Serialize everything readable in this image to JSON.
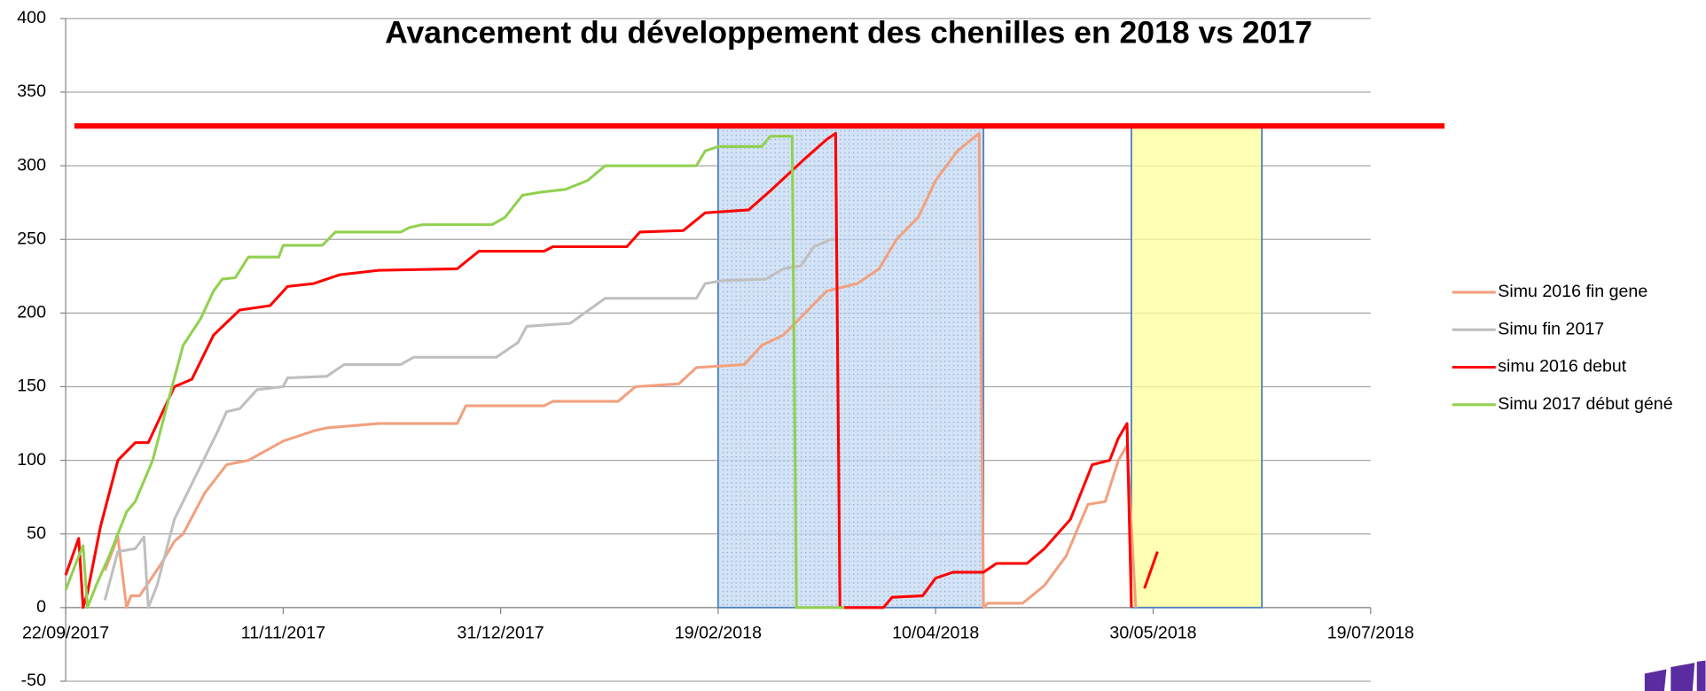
{
  "chart_data": {
    "type": "line",
    "title": "Avancement du développement des chenilles en 2018 vs 2017",
    "xlim": [
      "2017-09-22",
      "2018-07-19"
    ],
    "xticks": [
      {
        "value": "2017-09-22",
        "label": "22/09/2017"
      },
      {
        "value": "2017-11-11",
        "label": "11/11/2017"
      },
      {
        "value": "2017-12-31",
        "label": "31/12/2017"
      },
      {
        "value": "2018-02-19",
        "label": "19/02/2018"
      },
      {
        "value": "2018-04-10",
        "label": "10/04/2018"
      },
      {
        "value": "2018-05-30",
        "label": "30/05/2018"
      },
      {
        "value": "2018-07-19",
        "label": "19/07/2018"
      }
    ],
    "ylim": [
      -50,
      400
    ],
    "yticks": [
      -50,
      0,
      50,
      100,
      150,
      200,
      250,
      300,
      350,
      400
    ],
    "grid": true,
    "legend": "right",
    "reference_line": {
      "value": 327,
      "x": [
        "2017-09-24",
        "2018-08-05"
      ],
      "color": "#ff0000"
    },
    "shaded_regions": [
      {
        "x": [
          "2018-02-19",
          "2018-04-21"
        ],
        "y": [
          0,
          327
        ],
        "color": "#c5d9f1",
        "border": "#4f81bd"
      },
      {
        "x": [
          "2018-05-25",
          "2018-06-24"
        ],
        "y": [
          0,
          327
        ],
        "color": "#ffff99",
        "border": "#4f81bd"
      }
    ],
    "series": [
      {
        "name": "Simu 2016 fin gene",
        "color": "#f2a07e",
        "x": [
          "2017-10-01",
          "2017-10-04",
          "2017-10-06",
          "2017-10-07",
          "2017-10-09",
          "2017-10-14",
          "2017-10-17",
          "2017-10-19",
          "2017-10-24",
          "2017-10-29",
          "2017-11-03",
          "2017-11-11",
          "2017-11-18",
          "2017-11-21",
          "2017-12-03",
          "2017-12-21",
          "2017-12-23",
          "2018-01-10",
          "2018-01-12",
          "2018-01-27",
          "2018-01-31",
          "2018-02-10",
          "2018-02-14",
          "2018-02-25",
          "2018-03-01",
          "2018-03-06",
          "2018-03-11",
          "2018-03-16",
          "2018-03-23",
          "2018-03-28",
          "2018-04-01",
          "2018-04-06",
          "2018-04-10",
          "2018-04-15",
          "2018-04-20",
          "2018-04-21",
          "2018-04-22",
          "2018-04-30",
          "2018-05-05",
          "2018-05-10",
          "2018-05-15",
          "2018-05-19",
          "2018-05-22",
          "2018-05-24",
          "2018-05-26"
        ],
        "values": [
          25,
          48,
          0,
          8,
          8,
          30,
          45,
          50,
          78,
          97,
          100,
          113,
          120,
          122,
          125,
          125,
          137,
          137,
          140,
          140,
          150,
          152,
          163,
          165,
          178,
          185,
          200,
          215,
          220,
          230,
          250,
          265,
          290,
          310,
          322,
          0,
          3,
          3,
          15,
          35,
          70,
          72,
          100,
          110,
          0
        ]
      },
      {
        "name": "Simu fin 2017",
        "color": "#bfbfbf",
        "x": [
          "2017-10-01",
          "2017-10-04",
          "2017-10-08",
          "2017-10-10",
          "2017-10-11",
          "2017-10-13",
          "2017-10-17",
          "2017-10-22",
          "2017-10-27",
          "2017-10-29",
          "2017-11-01",
          "2017-11-05",
          "2017-11-11",
          "2017-11-12",
          "2017-11-21",
          "2017-11-25",
          "2017-12-08",
          "2017-12-11",
          "2017-12-30",
          "2018-01-04",
          "2018-01-06",
          "2018-01-16",
          "2018-01-24",
          "2018-02-14",
          "2018-02-16",
          "2018-02-20",
          "2018-03-02",
          "2018-03-06",
          "2018-03-10",
          "2018-03-13",
          "2018-03-17",
          "2018-03-18"
        ],
        "values": [
          5,
          38,
          40,
          48,
          0,
          15,
          60,
          90,
          120,
          133,
          135,
          148,
          150,
          156,
          157,
          165,
          165,
          170,
          170,
          180,
          191,
          193,
          210,
          210,
          220,
          222,
          223,
          230,
          232,
          245,
          250,
          250
        ]
      },
      {
        "name": "simu 2016 debut",
        "color": "#ff0000",
        "x": [
          "2017-09-22",
          "2017-09-25",
          "2017-09-26",
          "2017-09-27",
          "2017-09-30",
          "2017-10-04",
          "2017-10-08",
          "2017-10-11",
          "2017-10-17",
          "2017-10-21",
          "2017-10-26",
          "2017-11-01",
          "2017-11-08",
          "2017-11-12",
          "2017-11-18",
          "2017-11-24",
          "2017-12-03",
          "2017-12-21",
          "2017-12-26",
          "2018-01-10",
          "2018-01-12",
          "2018-01-29",
          "2018-02-01",
          "2018-02-11",
          "2018-02-16",
          "2018-02-26",
          "2018-03-03",
          "2018-03-11",
          "2018-03-16",
          "2018-03-18",
          "2018-03-19",
          "2018-03-29",
          "2018-03-31",
          "2018-04-07",
          "2018-04-10",
          "2018-04-14",
          "2018-04-21",
          "2018-04-24",
          "2018-05-01",
          "2018-05-05",
          "2018-05-11",
          "2018-05-16",
          "2018-05-20",
          "2018-05-22",
          "2018-05-24",
          "2018-05-25",
          null,
          "2018-05-28",
          "2018-05-31"
        ],
        "values": [
          22,
          47,
          0,
          10,
          55,
          100,
          112,
          112,
          150,
          155,
          185,
          202,
          205,
          218,
          220,
          226,
          229,
          230,
          242,
          242,
          245,
          245,
          255,
          256,
          268,
          270,
          283,
          305,
          318,
          322,
          0,
          0,
          7,
          8,
          20,
          24,
          24,
          30,
          30,
          40,
          60,
          97,
          100,
          115,
          125,
          0,
          null,
          13,
          38
        ]
      },
      {
        "name": "Simu 2017 début géné",
        "color": "#92d050",
        "x": [
          "2017-09-22",
          "2017-09-25",
          "2017-09-26",
          "2017-09-27",
          "2017-09-29",
          "2017-10-02",
          "2017-10-06",
          "2017-10-08",
          "2017-10-12",
          "2017-10-16",
          "2017-10-19",
          "2017-10-23",
          "2017-10-26",
          "2017-10-28",
          "2017-10-31",
          "2017-11-03",
          "2017-11-10",
          "2017-11-11",
          "2017-11-20",
          "2017-11-23",
          "2017-12-08",
          "2017-12-10",
          "2017-12-13",
          "2017-12-29",
          "2018-01-01",
          "2018-01-05",
          "2018-01-09",
          "2018-01-15",
          "2018-01-20",
          "2018-01-24",
          "2018-02-14",
          "2018-02-16",
          "2018-02-19",
          "2018-03-01",
          "2018-03-03",
          "2018-03-08",
          "2018-03-09",
          "2018-03-20"
        ],
        "values": [
          12,
          35,
          42,
          0,
          15,
          35,
          65,
          72,
          100,
          145,
          178,
          196,
          215,
          223,
          224,
          238,
          238,
          246,
          246,
          255,
          255,
          258,
          260,
          260,
          265,
          280,
          282,
          284,
          290,
          300,
          300,
          310,
          313,
          313,
          320,
          320,
          0,
          0
        ]
      }
    ]
  }
}
